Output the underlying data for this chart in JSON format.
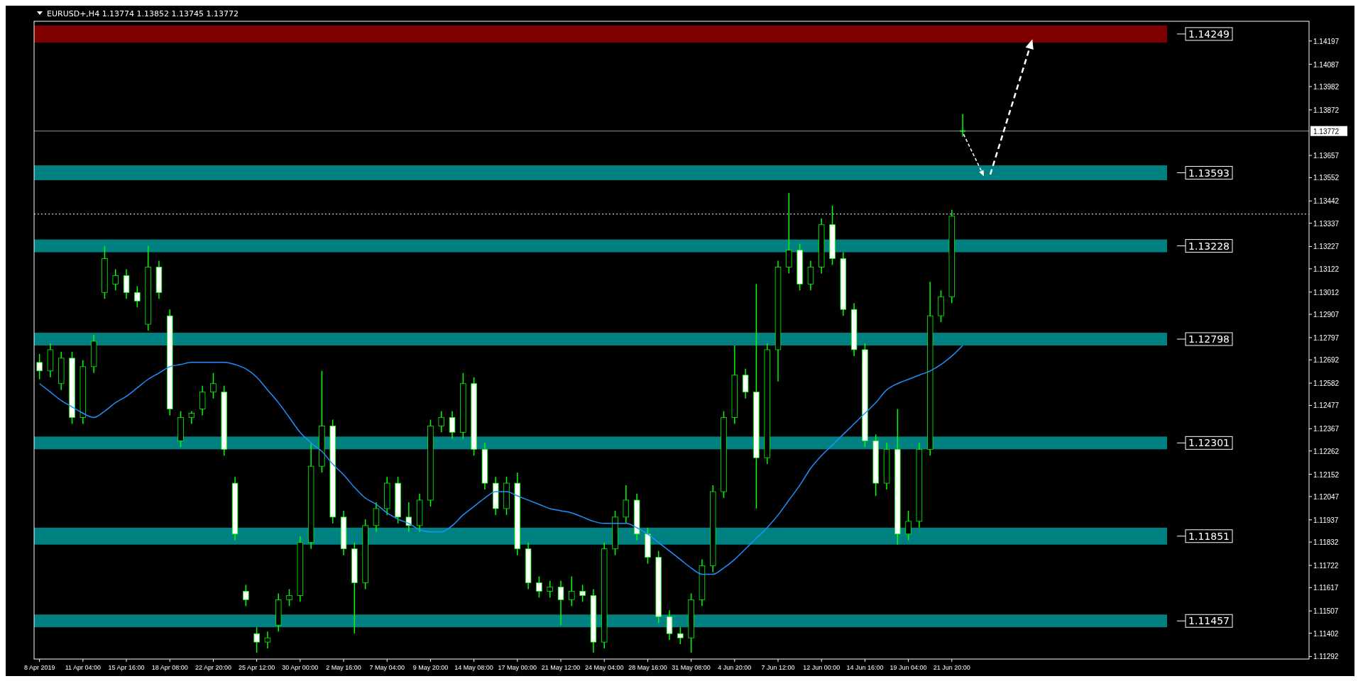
{
  "chart_data": {
    "type": "candlestick",
    "title": "EURUSD+,H4  1.13774 1.13852 1.13745 1.13772",
    "categories": [
      "8 Apr 2019",
      null,
      null,
      null,
      "11 Apr 04:00",
      null,
      null,
      null,
      "15 Apr 16:00",
      null,
      null,
      null,
      "18 Apr 08:00",
      null,
      null,
      null,
      "22 Apr 20:00",
      null,
      null,
      null,
      "25 Apr 12:00",
      null,
      null,
      null,
      "30 Apr 00:00",
      null,
      null,
      null,
      "2 May 16:00",
      null,
      null,
      null,
      "7 May 04:00",
      null,
      null,
      null,
      "9 May 20:00",
      null,
      null,
      null,
      "14 May 08:00",
      null,
      null,
      null,
      "17 May 00:00",
      null,
      null,
      null,
      "21 May 12:00",
      null,
      null,
      null,
      "24 May 04:00",
      null,
      null,
      null,
      "28 May 16:00",
      null,
      null,
      null,
      "31 May 08:00",
      null,
      null,
      null,
      "4 Jun 20:00",
      null,
      null,
      null,
      "7 Jun 12:00",
      null,
      null,
      null,
      "12 Jun 00:00",
      null,
      null,
      null,
      "14 Jun 16:00",
      null,
      null,
      null,
      "19 Jun 04:00",
      null,
      null,
      null,
      "21 Jun 20:00",
      null
    ],
    "ylim": [
      1.1128,
      1.1429
    ],
    "yticks": [
      1.14197,
      1.14087,
      1.13982,
      1.13872,
      1.13657,
      1.13552,
      1.13442,
      1.13337,
      1.13227,
      1.13122,
      1.13012,
      1.12907,
      1.12797,
      1.12692,
      1.12582,
      1.12477,
      1.12367,
      1.12262,
      1.12152,
      1.12047,
      1.11937,
      1.11832,
      1.11722,
      1.11617,
      1.11507,
      1.11402,
      1.11292
    ],
    "bands": [
      {
        "axis": "y",
        "from": 1.1419,
        "to": 1.1427,
        "label": "1.14249",
        "color": "#800000"
      },
      {
        "axis": "y",
        "from": 1.1354,
        "to": 1.1361,
        "label": "1.13593",
        "color": "#008080"
      },
      {
        "axis": "y",
        "from": 1.132,
        "to": 1.1326,
        "label": "1.13228",
        "color": "#008080"
      },
      {
        "axis": "y",
        "from": 1.1276,
        "to": 1.1282,
        "label": "1.12798",
        "color": "#008080"
      },
      {
        "axis": "y",
        "from": 1.1227,
        "to": 1.1233,
        "label": "1.12301",
        "color": "#008080"
      },
      {
        "axis": "y",
        "from": 1.1182,
        "to": 1.119,
        "label": "1.11851",
        "color": "#008080"
      },
      {
        "axis": "y",
        "from": 1.1143,
        "to": 1.1149,
        "label": "1.11457",
        "color": "#008080"
      }
    ],
    "ref_lines": [
      {
        "axis": "y",
        "value": 1.13772,
        "label": "1.13772",
        "color": "#8a9aa8",
        "line_style": "solid"
      },
      {
        "axis": "y",
        "value": 1.1338,
        "color": "#ffffff",
        "line_style": "dotted"
      }
    ],
    "series": [
      {
        "color": "#00ff00",
        "ohlc": [
          [
            1.1268,
            1.1272,
            1.126,
            1.1264
          ],
          [
            1.1264,
            1.1277,
            1.1261,
            1.1274
          ],
          [
            1.1258,
            1.1273,
            1.1255,
            1.127
          ],
          [
            1.127,
            1.1273,
            1.1239,
            1.1242
          ],
          [
            1.1242,
            1.1269,
            1.1239,
            1.1266
          ],
          [
            1.1266,
            1.1281,
            1.1263,
            1.1278
          ],
          [
            1.1301,
            1.1323,
            1.1298,
            1.1317
          ],
          [
            1.1305,
            1.1312,
            1.1302,
            1.1309
          ],
          [
            1.1309,
            1.1312,
            1.1298,
            1.1301
          ],
          [
            1.1301,
            1.1304,
            1.1294,
            1.1297
          ],
          [
            1.1286,
            1.1323,
            1.1283,
            1.1313
          ],
          [
            1.1313,
            1.1316,
            1.1298,
            1.1301
          ],
          [
            1.129,
            1.1293,
            1.1243,
            1.1246
          ],
          [
            1.1231,
            1.1245,
            1.1228,
            1.1242
          ],
          [
            1.1242,
            1.1245,
            1.1239,
            1.1244
          ],
          [
            1.1246,
            1.1257,
            1.1243,
            1.1254
          ],
          [
            1.1254,
            1.1263,
            1.1251,
            1.1258
          ],
          [
            1.1254,
            1.1257,
            1.1224,
            1.1227
          ],
          [
            1.1211,
            1.1214,
            1.1184,
            1.1187
          ],
          [
            1.116,
            1.1163,
            1.1153,
            1.1156
          ],
          [
            1.114,
            1.1143,
            1.1131,
            1.1136
          ],
          [
            1.1136,
            1.1141,
            1.1133,
            1.1138
          ],
          [
            1.1144,
            1.1159,
            1.1141,
            1.1156
          ],
          [
            1.1156,
            1.1161,
            1.1153,
            1.1158
          ],
          [
            1.1158,
            1.1186,
            1.1155,
            1.1183
          ],
          [
            1.1183,
            1.123,
            1.118,
            1.1219
          ],
          [
            1.1219,
            1.1264,
            1.1216,
            1.1238
          ],
          [
            1.1238,
            1.1241,
            1.1192,
            1.1195
          ],
          [
            1.1195,
            1.1198,
            1.1177,
            1.118
          ],
          [
            1.118,
            1.1183,
            1.114,
            1.1164
          ],
          [
            1.1164,
            1.1194,
            1.1161,
            1.1191
          ],
          [
            1.1191,
            1.1202,
            1.1188,
            1.1199
          ],
          [
            1.1199,
            1.1214,
            1.1196,
            1.1211
          ],
          [
            1.1211,
            1.1214,
            1.1192,
            1.1195
          ],
          [
            1.1195,
            1.1202,
            1.1188,
            1.1191
          ],
          [
            1.1191,
            1.1206,
            1.1188,
            1.1203
          ],
          [
            1.1203,
            1.1241,
            1.12,
            1.1238
          ],
          [
            1.1238,
            1.1245,
            1.1235,
            1.1242
          ],
          [
            1.1242,
            1.1245,
            1.1232,
            1.1235
          ],
          [
            1.1235,
            1.1263,
            1.1232,
            1.1258
          ],
          [
            1.1258,
            1.1261,
            1.1224,
            1.1227
          ],
          [
            1.1227,
            1.123,
            1.1208,
            1.1211
          ],
          [
            1.1211,
            1.1214,
            1.1196,
            1.1199
          ],
          [
            1.1199,
            1.1214,
            1.1196,
            1.1211
          ],
          [
            1.1211,
            1.1216,
            1.1177,
            1.118
          ],
          [
            1.118,
            1.1183,
            1.1161,
            1.1164
          ],
          [
            1.1164,
            1.1167,
            1.1157,
            1.116
          ],
          [
            1.116,
            1.1165,
            1.1157,
            1.1162
          ],
          [
            1.1162,
            1.1165,
            1.1144,
            1.1156
          ],
          [
            1.1156,
            1.1167,
            1.1153,
            1.116
          ],
          [
            1.116,
            1.1163,
            1.1155,
            1.1158
          ],
          [
            1.1158,
            1.1161,
            1.1131,
            1.1136
          ],
          [
            1.1136,
            1.1183,
            1.1133,
            1.118
          ],
          [
            1.118,
            1.1198,
            1.1177,
            1.1195
          ],
          [
            1.1195,
            1.121,
            1.1192,
            1.1203
          ],
          [
            1.1203,
            1.1206,
            1.1184,
            1.1187
          ],
          [
            1.1187,
            1.119,
            1.1173,
            1.1176
          ],
          [
            1.1176,
            1.1179,
            1.1145,
            1.1148
          ],
          [
            1.1148,
            1.1151,
            1.1137,
            1.114
          ],
          [
            1.114,
            1.1143,
            1.1135,
            1.1138
          ],
          [
            1.1138,
            1.1159,
            1.1131,
            1.1156
          ],
          [
            1.1156,
            1.1175,
            1.1153,
            1.1172
          ],
          [
            1.1172,
            1.121,
            1.1169,
            1.1207
          ],
          [
            1.1207,
            1.1245,
            1.1204,
            1.1242
          ],
          [
            1.1242,
            1.1276,
            1.1239,
            1.1262
          ],
          [
            1.1262,
            1.1265,
            1.1251,
            1.1254
          ],
          [
            1.1254,
            1.1305,
            1.1199,
            1.1223
          ],
          [
            1.1223,
            1.1277,
            1.122,
            1.1274
          ],
          [
            1.1274,
            1.1316,
            1.1259,
            1.1313
          ],
          [
            1.1313,
            1.1348,
            1.131,
            1.1321
          ],
          [
            1.1321,
            1.1324,
            1.1302,
            1.1305
          ],
          [
            1.1305,
            1.1316,
            1.1302,
            1.1313
          ],
          [
            1.1313,
            1.1336,
            1.131,
            1.1333
          ],
          [
            1.1333,
            1.1342,
            1.1314,
            1.1317
          ],
          [
            1.1317,
            1.132,
            1.129,
            1.1293
          ],
          [
            1.1293,
            1.1296,
            1.1271,
            1.1274
          ],
          [
            1.1274,
            1.1277,
            1.1228,
            1.1231
          ],
          [
            1.1231,
            1.1234,
            1.1205,
            1.1211
          ],
          [
            1.1211,
            1.123,
            1.1208,
            1.1227
          ],
          [
            1.1227,
            1.1246,
            1.1182,
            1.1187
          ],
          [
            1.1187,
            1.1198,
            1.1184,
            1.1193
          ],
          [
            1.1193,
            1.123,
            1.119,
            1.1227
          ],
          [
            1.1227,
            1.1306,
            1.1224,
            1.129
          ],
          [
            1.129,
            1.1302,
            1.1287,
            1.1299
          ],
          [
            1.1299,
            1.134,
            1.1296,
            1.1337
          ],
          [
            1.13774,
            1.13852,
            1.13745,
            1.13772
          ]
        ]
      },
      {
        "type": "line",
        "color": "#1e90ff",
        "values": [
          1.1258,
          1.1254,
          1.125,
          1.1247,
          1.1244,
          1.1242,
          1.1245,
          1.1249,
          1.1252,
          1.1256,
          1.126,
          1.1263,
          1.1266,
          1.1267,
          1.1268,
          1.1268,
          1.1268,
          1.1268,
          1.1267,
          1.1265,
          1.1261,
          1.1255,
          1.1249,
          1.1242,
          1.1235,
          1.123,
          1.1226,
          1.122,
          1.1215,
          1.1209,
          1.1204,
          1.1201,
          1.1197,
          1.1194,
          1.1192,
          1.1189,
          1.1188,
          1.1188,
          1.1191,
          1.1196,
          1.12,
          1.1204,
          1.1207,
          1.1207,
          1.1205,
          1.1203,
          1.1201,
          1.1199,
          1.1198,
          1.1197,
          1.1195,
          1.1193,
          1.1192,
          1.1192,
          1.1192,
          1.119,
          1.1187,
          1.1183,
          1.1179,
          1.1175,
          1.1171,
          1.1168,
          1.1168,
          1.1171,
          1.1175,
          1.118,
          1.1185,
          1.119,
          1.1196,
          1.1203,
          1.121,
          1.1218,
          1.1224,
          1.1229,
          1.1234,
          1.1239,
          1.1244,
          1.1249,
          1.1255,
          1.1258,
          1.126,
          1.1262,
          1.1264,
          1.1267,
          1.1271,
          1.1276
        ]
      }
    ]
  }
}
